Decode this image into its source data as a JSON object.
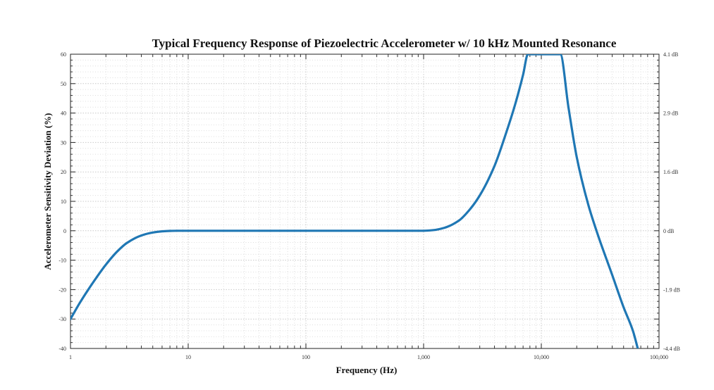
{
  "chart_data": {
    "type": "line",
    "title": "Typical Frequency Response of Piezoelectric Accelerometer w/ 10 kHz Mounted Resonance",
    "xlabel": "Frequency (Hz)",
    "ylabel": "Accelerometer Sensitivity Deviation (%)",
    "x_scale": "log",
    "xlim": [
      1,
      100000
    ],
    "ylim": [
      -40,
      60
    ],
    "grid": true,
    "x_ticks": [
      {
        "value": 1,
        "label": "1"
      },
      {
        "value": 10,
        "label": "10"
      },
      {
        "value": 100,
        "label": "100"
      },
      {
        "value": 1000,
        "label": "1,000"
      },
      {
        "value": 10000,
        "label": "10,000"
      },
      {
        "value": 100000,
        "label": "100,000"
      }
    ],
    "y_ticks": [
      {
        "value": 60,
        "label": "60"
      },
      {
        "value": 50,
        "label": "50"
      },
      {
        "value": 40,
        "label": "40"
      },
      {
        "value": 30,
        "label": "30"
      },
      {
        "value": 20,
        "label": "20"
      },
      {
        "value": 10,
        "label": "10"
      },
      {
        "value": 0,
        "label": "0"
      },
      {
        "value": -10,
        "label": "-10"
      },
      {
        "value": -20,
        "label": "-20"
      },
      {
        "value": -30,
        "label": "-30"
      },
      {
        "value": -40,
        "label": "-40"
      }
    ],
    "y2_ticks": [
      {
        "value": 60,
        "label": "4.1 dB"
      },
      {
        "value": 40,
        "label": "2.9 dB"
      },
      {
        "value": 20,
        "label": "1.6 dB"
      },
      {
        "value": 0,
        "label": "0 dB"
      },
      {
        "value": -20,
        "label": "-1.9 dB"
      },
      {
        "value": -40,
        "label": "-4.4 dB"
      }
    ],
    "series": [
      {
        "color": "#1f77b4",
        "x": [
          1,
          1.2,
          1.5,
          2,
          2.5,
          3,
          4,
          5,
          6,
          7,
          8,
          10,
          20,
          100,
          500,
          1000,
          1200,
          1500,
          2000,
          2500,
          3000,
          4000,
          5000,
          6000,
          7000,
          7700,
          14500,
          17000,
          20000,
          25000,
          30000,
          40000,
          50000,
          60000,
          66000
        ],
        "y": [
          -30,
          -24.5,
          -18.5,
          -11.5,
          -7,
          -4.2,
          -1.6,
          -0.6,
          -0.2,
          -0.05,
          0,
          0,
          0,
          0,
          0,
          0,
          0.2,
          1,
          3.5,
          7.5,
          12,
          22,
          33,
          43,
          53,
          60,
          60,
          42,
          25,
          9,
          -1,
          -15,
          -26,
          -34,
          -40
        ]
      }
    ]
  }
}
